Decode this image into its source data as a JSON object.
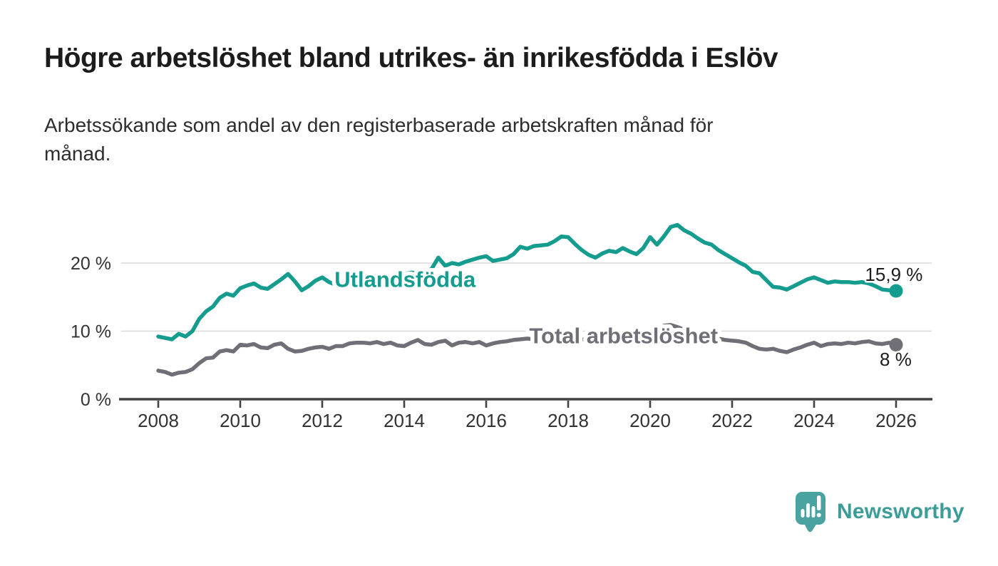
{
  "header": {
    "title": "Högre arbetslöshet bland utrikes- än inrikesfödda i Eslöv",
    "subtitle": "Arbetssökande som andel av den registerbaserade arbetskraften månad för\nmånad."
  },
  "chart_data": {
    "type": "line",
    "title": "Högre arbetslöshet bland utrikes- än inrikesfödda i Eslöv",
    "subtitle": "Arbetssökande som andel av den registerbaserade arbetskraften månad för månad.",
    "grid": "horizontal-only",
    "legend": "inline-labels",
    "x_start": 2008,
    "x_step_years": 0.1666667,
    "x_ticks": [
      2008,
      2010,
      2012,
      2014,
      2016,
      2018,
      2020,
      2022,
      2024,
      2026
    ],
    "y_ticks": [
      {
        "value": 0,
        "label": "0 %"
      },
      {
        "value": 10,
        "label": "10 %"
      },
      {
        "value": 20,
        "label": "20 %"
      }
    ],
    "ylim": [
      0,
      27
    ],
    "xlim": [
      2007.5,
      2026.9
    ],
    "series": [
      {
        "name": "Utlandsfödda",
        "color": "#149C8E",
        "end_value_label": "15,9 %",
        "last_value": 15.9,
        "inline_label_pos": {
          "year": 2012.3,
          "pct": 16.5
        },
        "end_label_pos": {
          "year": 2026.65,
          "pct": 17.4
        },
        "values": [
          9.2,
          9.0,
          8.8,
          9.6,
          9.2,
          10.0,
          11.8,
          12.9,
          13.6,
          14.9,
          15.5,
          15.2,
          16.3,
          16.7,
          17.0,
          16.4,
          16.2,
          16.9,
          17.6,
          18.4,
          17.3,
          16.0,
          16.6,
          17.4,
          17.9,
          17.2,
          16.8,
          17.1,
          17.3,
          17.4,
          17.6,
          17.8,
          17.7,
          18.0,
          18.2,
          18.1,
          18.4,
          18.6,
          18.5,
          18.8,
          19.1,
          20.8,
          19.6,
          20.0,
          19.8,
          20.2,
          20.5,
          20.8,
          21.0,
          20.3,
          20.5,
          20.7,
          21.3,
          22.4,
          22.1,
          22.5,
          22.6,
          22.7,
          23.2,
          23.9,
          23.8,
          22.8,
          21.9,
          21.2,
          20.8,
          21.4,
          21.8,
          21.6,
          22.2,
          21.7,
          21.3,
          22.2,
          23.8,
          22.7,
          23.9,
          25.3,
          25.6,
          24.8,
          24.3,
          23.6,
          23.0,
          22.7,
          21.9,
          21.3,
          20.7,
          20.1,
          19.6,
          18.7,
          18.5,
          17.5,
          16.5,
          16.4,
          16.1,
          16.6,
          17.1,
          17.6,
          17.9,
          17.5,
          17.1,
          17.3,
          17.2,
          17.2,
          17.1,
          17.2,
          17.0,
          16.6,
          16.1,
          16.0,
          15.9
        ]
      },
      {
        "name": "Total arbetslöshet",
        "color": "#706F78",
        "end_value_label": "8 %",
        "last_value": 8,
        "inline_label_pos": {
          "year": 2017.05,
          "pct": 8.2
        },
        "end_label_pos": {
          "year": 2026.38,
          "pct": 4.9
        },
        "values": [
          4.2,
          4.0,
          3.6,
          3.9,
          4.0,
          4.4,
          5.3,
          6.0,
          6.1,
          7.0,
          7.2,
          7.0,
          8.0,
          7.9,
          8.1,
          7.6,
          7.5,
          8.0,
          8.2,
          7.4,
          7.0,
          7.1,
          7.4,
          7.6,
          7.7,
          7.4,
          7.8,
          7.8,
          8.2,
          8.3,
          8.3,
          8.2,
          8.4,
          8.1,
          8.3,
          7.9,
          7.8,
          8.3,
          8.7,
          8.1,
          8.0,
          8.4,
          8.6,
          7.9,
          8.3,
          8.4,
          8.2,
          8.4,
          7.9,
          8.2,
          8.4,
          8.5,
          8.7,
          8.8,
          8.9,
          8.8,
          9.0,
          8.9,
          8.8,
          8.9,
          8.8,
          8.7,
          8.8,
          8.7,
          8.8,
          8.9,
          8.9,
          9.0,
          9.1,
          9.2,
          9.4,
          9.6,
          9.9,
          10.4,
          10.8,
          10.9,
          10.6,
          10.2,
          9.9,
          9.6,
          9.3,
          9.1,
          8.9,
          8.7,
          8.6,
          8.5,
          8.3,
          7.8,
          7.4,
          7.3,
          7.4,
          7.1,
          6.9,
          7.3,
          7.6,
          8.0,
          8.3,
          7.8,
          8.1,
          8.2,
          8.1,
          8.3,
          8.2,
          8.4,
          8.5,
          8.2,
          8.1,
          8.3,
          8.0
        ]
      }
    ]
  },
  "footer": {
    "brand": "Newsworthy",
    "logo_icon": "newsworthy-badge-bar-chart-icon"
  }
}
